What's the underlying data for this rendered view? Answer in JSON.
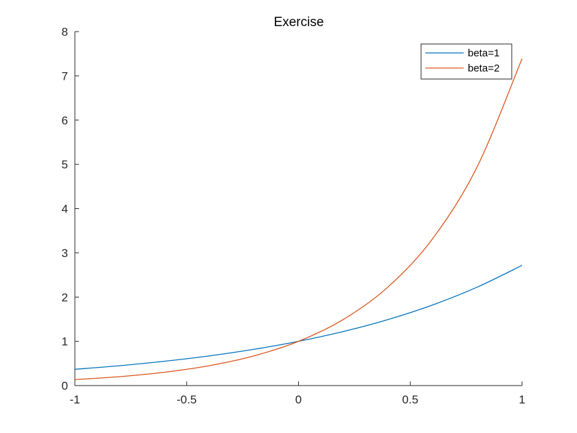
{
  "chart_data": {
    "type": "line",
    "title": "Exercise",
    "xlabel": "",
    "ylabel": "",
    "xlim": [
      -1,
      1
    ],
    "ylim": [
      0,
      8
    ],
    "xticks": [
      "-1",
      "-0.5",
      "0",
      "0.5",
      "1"
    ],
    "xtick_values": [
      -1,
      -0.5,
      0,
      0.5,
      1
    ],
    "yticks": [
      "0",
      "1",
      "2",
      "3",
      "4",
      "5",
      "6",
      "7",
      "8"
    ],
    "ytick_values": [
      0,
      1,
      2,
      3,
      4,
      5,
      6,
      7,
      8
    ],
    "grid": false,
    "legend_position": "top-right",
    "x": [
      -1,
      -0.8,
      -0.6,
      -0.4,
      -0.2,
      0,
      0.2,
      0.4,
      0.6,
      0.8,
      1
    ],
    "series": [
      {
        "name": "beta=1",
        "color": "#0072BD",
        "values": [
          0.368,
          0.449,
          0.549,
          0.67,
          0.819,
          1.0,
          1.221,
          1.492,
          1.822,
          2.226,
          2.718
        ]
      },
      {
        "name": "beta=2",
        "color": "#D95319",
        "values": [
          0.135,
          0.202,
          0.301,
          0.449,
          0.67,
          1.0,
          1.492,
          2.226,
          3.32,
          4.953,
          7.389
        ]
      }
    ]
  }
}
